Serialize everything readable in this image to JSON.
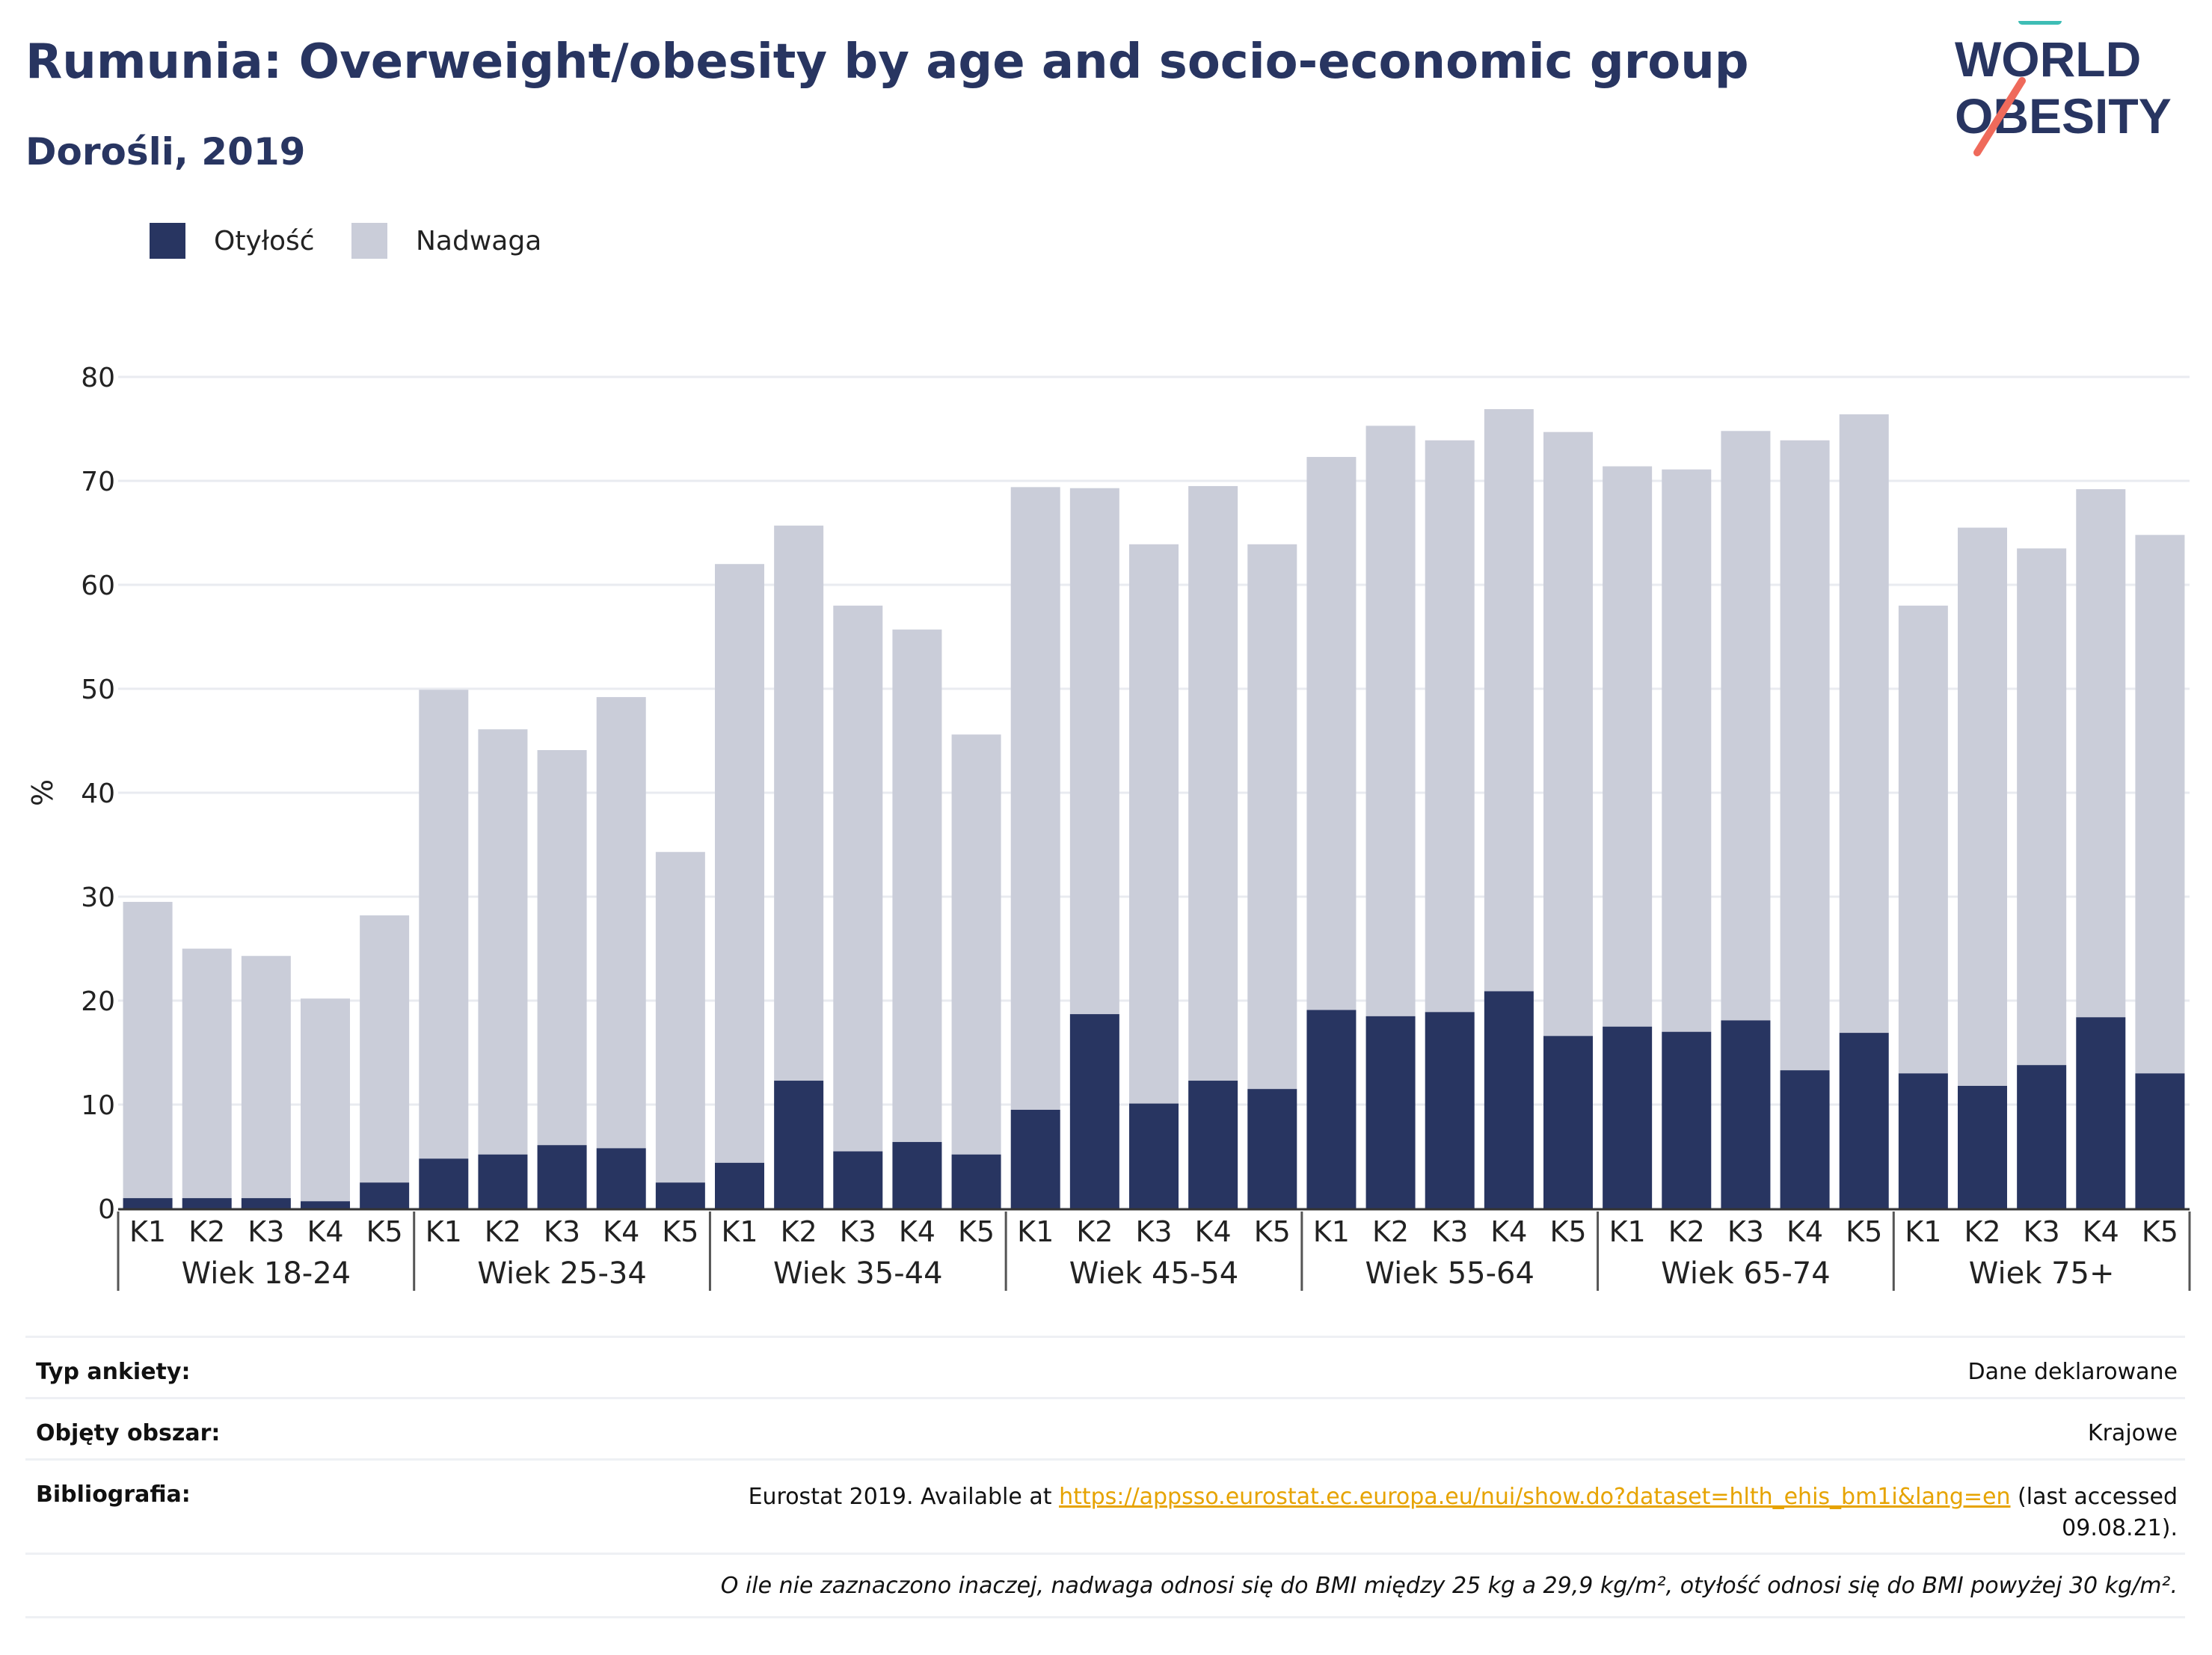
{
  "header": {
    "title": "Rumunia: Overweight/obesity by age and socio-economic group",
    "subtitle": "Dorośli, 2019"
  },
  "logo": {
    "line1": "WORLD",
    "line2": "OBESITY",
    "text_color": "#283561",
    "stripe_color_top": "#3ebdb5",
    "stripe_color_bottom": "#ef6a5b"
  },
  "legend": [
    {
      "label": "Otyłość",
      "color": "#283561"
    },
    {
      "label": "Nadwaga",
      "color": "#cacdd9"
    }
  ],
  "chart_data": {
    "type": "bar",
    "stacked": true,
    "ylabel": "%",
    "ylim": [
      0,
      80
    ],
    "yticks": [
      0,
      10,
      20,
      30,
      40,
      50,
      60,
      70,
      80
    ],
    "grid": true,
    "legend_position": "top-left",
    "groups": [
      {
        "label": "Wiek 18-24",
        "categories": [
          "K1",
          "K2",
          "K3",
          "K4",
          "K5"
        ],
        "obesity": [
          1.0,
          1.0,
          1.0,
          0.7,
          2.5
        ],
        "total": [
          29.5,
          25.0,
          24.3,
          20.2,
          28.2
        ]
      },
      {
        "label": "Wiek 25-34",
        "categories": [
          "K1",
          "K2",
          "K3",
          "K4",
          "K5"
        ],
        "obesity": [
          4.8,
          5.2,
          6.1,
          5.8,
          2.5
        ],
        "total": [
          49.9,
          46.1,
          44.1,
          49.2,
          34.3
        ]
      },
      {
        "label": "Wiek 35-44",
        "categories": [
          "K1",
          "K2",
          "K3",
          "K4",
          "K5"
        ],
        "obesity": [
          4.4,
          12.3,
          5.5,
          6.4,
          5.2
        ],
        "total": [
          62.0,
          65.7,
          58.0,
          55.7,
          45.6
        ]
      },
      {
        "label": "Wiek 45-54",
        "categories": [
          "K1",
          "K2",
          "K3",
          "K4",
          "K5"
        ],
        "obesity": [
          9.5,
          18.7,
          10.1,
          12.3,
          11.5
        ],
        "total": [
          69.4,
          69.3,
          63.9,
          69.5,
          63.9
        ]
      },
      {
        "label": "Wiek 55-64",
        "categories": [
          "K1",
          "K2",
          "K3",
          "K4",
          "K5"
        ],
        "obesity": [
          19.1,
          18.5,
          18.9,
          20.9,
          16.6
        ],
        "total": [
          72.3,
          75.3,
          73.9,
          76.9,
          74.7
        ]
      },
      {
        "label": "Wiek 65-74",
        "categories": [
          "K1",
          "K2",
          "K3",
          "K4",
          "K5"
        ],
        "obesity": [
          17.5,
          17.0,
          18.1,
          13.3,
          16.9
        ],
        "total": [
          71.4,
          71.1,
          74.8,
          73.9,
          76.4
        ]
      },
      {
        "label": "Wiek 75+",
        "categories": [
          "K1",
          "K2",
          "K3",
          "K4",
          "K5"
        ],
        "obesity": [
          13.0,
          11.8,
          13.8,
          18.4,
          13.0
        ],
        "total": [
          58.0,
          65.5,
          63.5,
          69.2,
          64.8
        ]
      }
    ]
  },
  "info": {
    "survey_label": "Typ ankiety:",
    "survey_value": "Dane deklarowane",
    "area_label": "Objęty obszar:",
    "area_value": "Krajowe",
    "biblio_label": "Bibliografia:",
    "biblio_prefix": "Eurostat 2019. Available at",
    "biblio_link": "https://appsso.eurostat.ec.europa.eu/nui/show.do?dataset=hlth_ehis_bm1i&lang=en",
    "biblio_suffix": "(last accessed",
    "biblio_date": "09.08.21).",
    "note": "O ile nie zaznaczono inaczej, nadwaga odnosi się do BMI między 25 kg a 29,9 kg/m², otyłość odnosi się do BMI powyżej 30 kg/m²."
  }
}
